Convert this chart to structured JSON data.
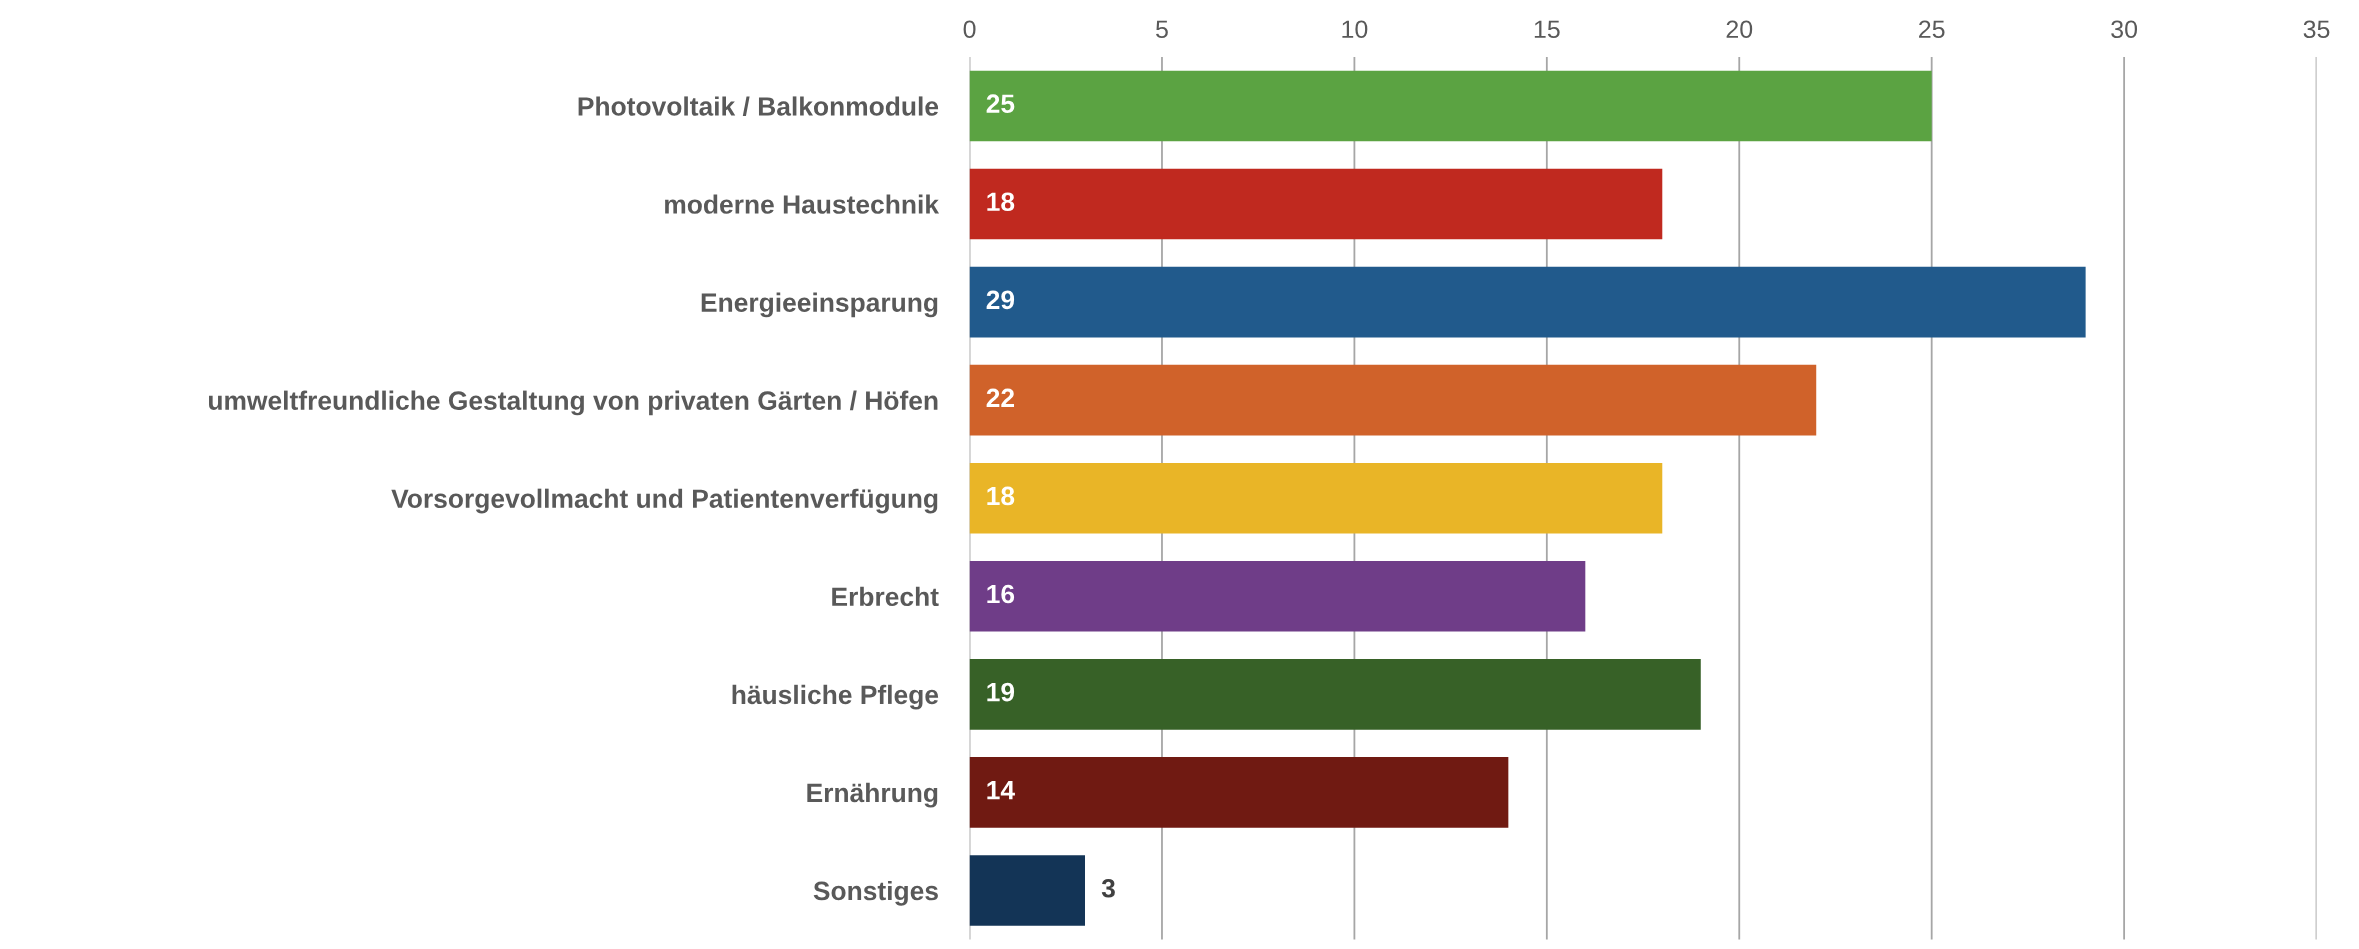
{
  "chart_data": {
    "type": "bar",
    "orientation": "horizontal",
    "categories": [
      "Photovoltaik / Balkonmodule",
      "moderne Haustechnik",
      "Energieeinsparung",
      "umweltfreundliche Gestaltung von privaten Gärten / Höfen",
      "Vorsorgevollmacht und Patientenverfügung",
      "Erbrecht",
      "häusliche Pflege",
      "Ernährung",
      "Sonstiges"
    ],
    "values": [
      25,
      18,
      29,
      22,
      18,
      16,
      19,
      14,
      3
    ],
    "colors": [
      "#5ba342",
      "#c0291f",
      "#215a8c",
      "#d0622a",
      "#e9b527",
      "#6f3d88",
      "#376127",
      "#701a12",
      "#133456"
    ],
    "xlim": [
      0,
      35
    ],
    "xticks": [
      0,
      5,
      10,
      15,
      20,
      25,
      30,
      35
    ],
    "grid": "x",
    "data_labels": true
  }
}
